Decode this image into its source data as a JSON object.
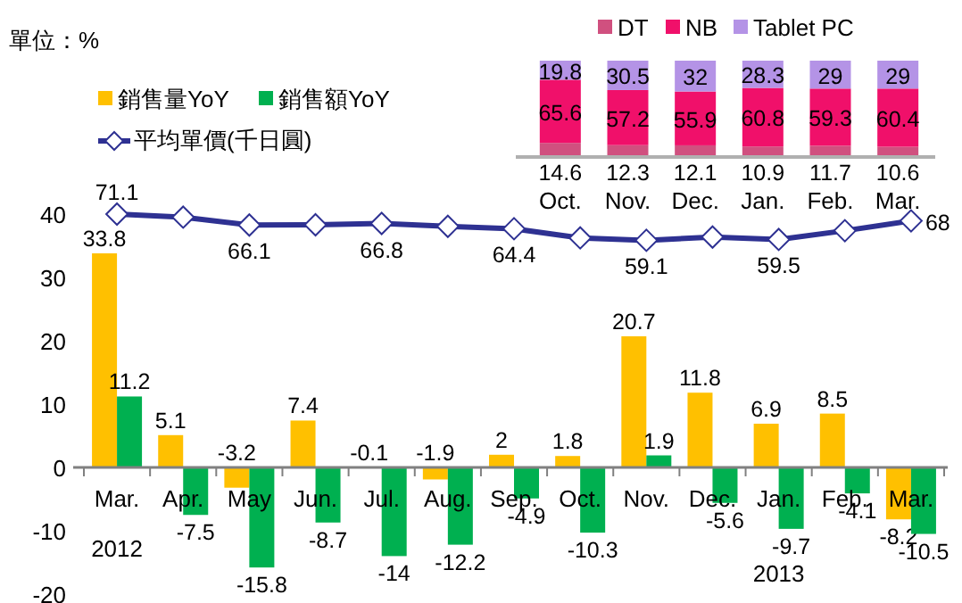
{
  "chart_data": [
    {
      "type": "bar",
      "ylabel": "單位：%",
      "categories": [
        "Mar.",
        "Apr.",
        "May",
        "Jun.",
        "Jul.",
        "Aug.",
        "Sep.",
        "Oct.",
        "Nov.",
        "Dec.",
        "Jan.",
        "Feb.",
        "Mar."
      ],
      "series": [
        {
          "name": "銷售量YoY",
          "color": "#ffc000",
          "values": [
            33.8,
            5.1,
            -3.2,
            7.4,
            -0.1,
            -1.9,
            2,
            1.8,
            20.7,
            11.8,
            6.9,
            8.5,
            -8.2
          ],
          "value_labels": [
            "33.8",
            "5.1",
            "-3.2",
            "7.4",
            "-0.1",
            "-1.9",
            "2",
            "1.8",
            "20.7",
            "11.8",
            "6.9",
            "8.5",
            "-8.2"
          ]
        },
        {
          "name": "銷售額YoY",
          "color": "#00b050",
          "values": [
            11.2,
            -7.5,
            -15.8,
            -8.7,
            -14,
            -12.2,
            -4.9,
            -10.3,
            1.9,
            -5.6,
            -9.7,
            -4.1,
            -10.5
          ],
          "value_labels": [
            "11.2",
            "-7.5",
            "-15.8",
            "-8.7",
            "-14",
            "-12.2",
            "-4.9",
            "-10.3",
            "1.9",
            "-5.6",
            "-9.7",
            "-4.1",
            "-10.5"
          ]
        },
        {
          "name": "平均單價(千日圓)",
          "type": "line",
          "axis": "y2",
          "color": "#2e3192",
          "marker": "diamond",
          "values": [
            71.1,
            69.7,
            66.1,
            66.2,
            66.8,
            65.5,
            64.4,
            60.2,
            59.1,
            60.6,
            59.5,
            63.5,
            68
          ],
          "value_labels": [
            "71.1",
            null,
            "66.1",
            null,
            "66.8",
            null,
            "64.4",
            null,
            "59.1",
            null,
            "59.5",
            null,
            "68"
          ]
        }
      ],
      "ylim": [
        -20,
        40
      ],
      "yticks": [
        -20,
        -10,
        0,
        10,
        20,
        30,
        40
      ],
      "legend": "top left",
      "annotations": [
        "2012",
        "2013"
      ]
    },
    {
      "type": "bar",
      "stacked": true,
      "categories": [
        "Oct.",
        "Nov.",
        "Dec.",
        "Jan.",
        "Feb.",
        "Mar."
      ],
      "legend": "top",
      "series": [
        {
          "name": "DT",
          "color": "#d0507f",
          "values": [
            14.6,
            12.3,
            12.1,
            10.9,
            11.7,
            10.6
          ]
        },
        {
          "name": "NB",
          "color": "#f0106a",
          "values": [
            65.6,
            57.2,
            55.9,
            60.8,
            59.3,
            60.4
          ]
        },
        {
          "name": "Tablet PC",
          "color": "#b493e6",
          "values": [
            19.8,
            30.5,
            32,
            28.3,
            29,
            29
          ]
        }
      ],
      "data_labels": true
    }
  ]
}
